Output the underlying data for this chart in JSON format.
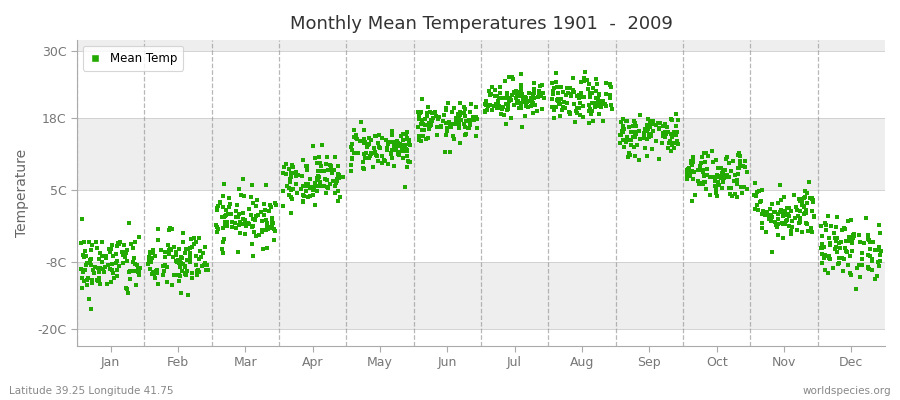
{
  "title": "Monthly Mean Temperatures 1901  -  2009",
  "ylabel": "Temperature",
  "subtitle_left": "Latitude 39.25 Longitude 41.75",
  "subtitle_right": "worldspecies.org",
  "background_color": "#ffffff",
  "plot_bg_color": "#ffffff",
  "band_colors": [
    "#ffffff",
    "#eeeeee"
  ],
  "marker_color": "#22aa00",
  "marker_size": 9,
  "yticks": [
    -20,
    -8,
    5,
    18,
    30
  ],
  "ytick_labels": [
    "-20C",
    "-8C",
    "5C",
    "18C",
    "30C"
  ],
  "ylim": [
    -23,
    32
  ],
  "months": [
    "Jan",
    "Feb",
    "Mar",
    "Apr",
    "May",
    "Jun",
    "Jul",
    "Aug",
    "Sep",
    "Oct",
    "Nov",
    "Dec"
  ],
  "month_means": [
    -8.5,
    -8.0,
    0.0,
    7.0,
    12.5,
    17.0,
    21.5,
    21.0,
    15.0,
    8.0,
    1.0,
    -5.5
  ],
  "month_stds": [
    3.0,
    2.8,
    2.5,
    2.3,
    2.0,
    1.8,
    1.8,
    2.0,
    2.0,
    2.3,
    2.5,
    2.8
  ],
  "n_years": 109,
  "seed": 42,
  "dashed_color": "#999999",
  "spine_color": "#aaaaaa",
  "tick_label_color": "#777777",
  "title_color": "#333333"
}
